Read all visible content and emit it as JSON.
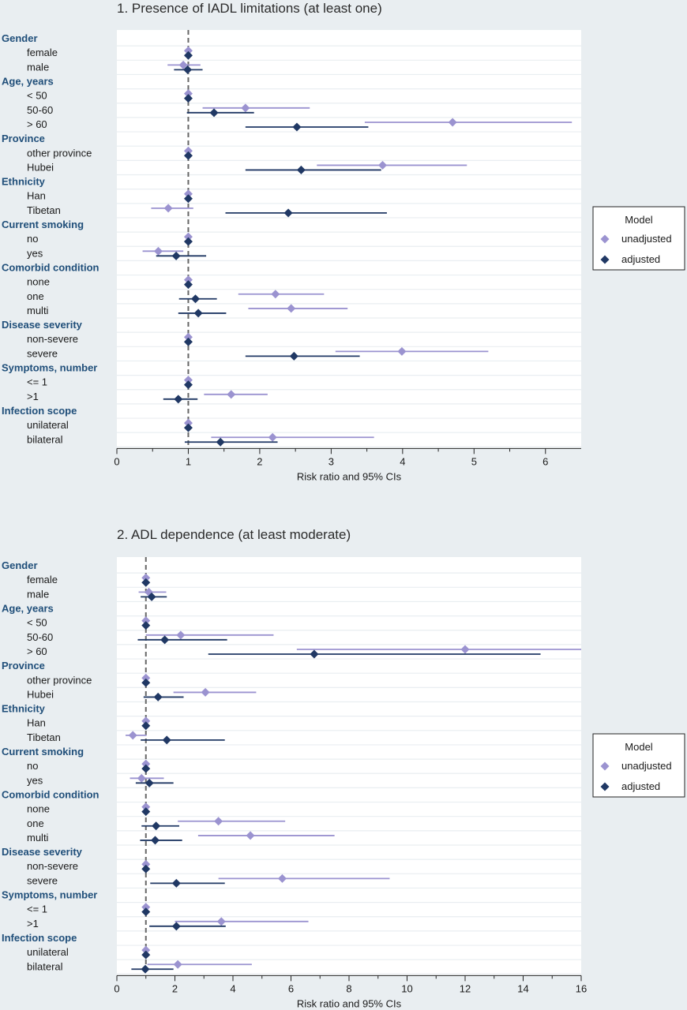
{
  "colors": {
    "background": "#e9eef1",
    "plot_background": "#ffffff",
    "row_band": "#e9eef1",
    "unadjusted": "#9b93d0",
    "adjusted": "#203864",
    "group_label": "#1f4e79",
    "reference_line": "#666666"
  },
  "chart_data": [
    {
      "type": "forest",
      "title": "1. Presence of IADL limitations (at least one)",
      "xlabel": "Risk ratio and 95% CIs",
      "xlim": [
        0,
        6.5
      ],
      "xticks": [
        0,
        1,
        2,
        3,
        4,
        5,
        6
      ],
      "reference_line": 1,
      "legend": {
        "title": "Model",
        "position": "right",
        "entries": [
          "unadjusted",
          "adjusted"
        ]
      },
      "rows": [
        {
          "label": "Gender",
          "group": true
        },
        {
          "label": "female",
          "unadjusted": [
            1,
            1,
            1
          ],
          "adjusted": [
            1,
            1,
            1
          ]
        },
        {
          "label": "male",
          "unadjusted": [
            0.93,
            0.71,
            1.17
          ],
          "adjusted": [
            0.99,
            0.8,
            1.2
          ]
        },
        {
          "label": "Age, years",
          "group": true
        },
        {
          "label": "< 50",
          "unadjusted": [
            1,
            1,
            1
          ],
          "adjusted": [
            1,
            1,
            1
          ]
        },
        {
          "label": "50-60",
          "unadjusted": [
            1.8,
            1.2,
            2.7
          ],
          "adjusted": [
            1.36,
            0.98,
            1.92
          ]
        },
        {
          "label": "> 60",
          "unadjusted": [
            4.7,
            3.47,
            6.37
          ],
          "adjusted": [
            2.52,
            1.8,
            3.52
          ]
        },
        {
          "label": "Province",
          "group": true
        },
        {
          "label": "other province",
          "unadjusted": [
            1,
            1,
            1
          ],
          "adjusted": [
            1,
            1,
            1
          ]
        },
        {
          "label": "Hubei",
          "unadjusted": [
            3.72,
            2.8,
            4.9
          ],
          "adjusted": [
            2.58,
            1.8,
            3.7
          ]
        },
        {
          "label": "Ethnicity",
          "group": true
        },
        {
          "label": "Han",
          "unadjusted": [
            1,
            1,
            1
          ],
          "adjusted": [
            1,
            1,
            1
          ]
        },
        {
          "label": "Tibetan",
          "unadjusted": [
            0.72,
            0.48,
            1.07
          ],
          "adjusted": [
            2.4,
            1.52,
            3.78
          ]
        },
        {
          "label": "Current smoking",
          "group": true
        },
        {
          "label": "no",
          "unadjusted": [
            1,
            1,
            1
          ],
          "adjusted": [
            1,
            1,
            1
          ]
        },
        {
          "label": "yes",
          "unadjusted": [
            0.58,
            0.36,
            0.93
          ],
          "adjusted": [
            0.83,
            0.55,
            1.25
          ]
        },
        {
          "label": "Comorbid condition",
          "group": true
        },
        {
          "label": "none",
          "unadjusted": [
            1,
            1,
            1
          ],
          "adjusted": [
            1,
            1,
            1
          ]
        },
        {
          "label": "one",
          "unadjusted": [
            2.22,
            1.7,
            2.9
          ],
          "adjusted": [
            1.1,
            0.87,
            1.4
          ]
        },
        {
          "label": "multi",
          "unadjusted": [
            2.44,
            1.84,
            3.23
          ],
          "adjusted": [
            1.14,
            0.86,
            1.53
          ]
        },
        {
          "label": "Disease severity",
          "group": true
        },
        {
          "label": "non-severe",
          "unadjusted": [
            1,
            1,
            1
          ],
          "adjusted": [
            1,
            1,
            1
          ]
        },
        {
          "label": "severe",
          "unadjusted": [
            3.99,
            3.06,
            5.2
          ],
          "adjusted": [
            2.48,
            1.8,
            3.4
          ]
        },
        {
          "label": "Symptoms, number",
          "group": true
        },
        {
          "label": "<= 1",
          "unadjusted": [
            1,
            1,
            1
          ],
          "adjusted": [
            1,
            1,
            1
          ]
        },
        {
          "label": ">1",
          "unadjusted": [
            1.6,
            1.22,
            2.11
          ],
          "adjusted": [
            0.86,
            0.65,
            1.13
          ]
        },
        {
          "label": "Infection scope",
          "group": true
        },
        {
          "label": "unilateral",
          "unadjusted": [
            1,
            1,
            1
          ],
          "adjusted": [
            1,
            1,
            1
          ]
        },
        {
          "label": "bilateral",
          "unadjusted": [
            2.18,
            1.32,
            3.6
          ],
          "adjusted": [
            1.45,
            0.95,
            2.25
          ]
        }
      ]
    },
    {
      "type": "forest",
      "title": "2. ADL dependence (at least moderate)",
      "xlabel": "Risk ratio and 95% CIs",
      "xlim": [
        0,
        16
      ],
      "xticks": [
        0,
        2,
        4,
        6,
        8,
        10,
        12,
        14,
        16
      ],
      "reference_line": 1,
      "legend": {
        "title": "Model",
        "position": "right",
        "entries": [
          "unadjusted",
          "adjusted"
        ]
      },
      "rows": [
        {
          "label": "Gender",
          "group": true
        },
        {
          "label": "female",
          "unadjusted": [
            1,
            1,
            1
          ],
          "adjusted": [
            1,
            1,
            1
          ]
        },
        {
          "label": "male",
          "unadjusted": [
            1.1,
            0.75,
            1.7
          ],
          "adjusted": [
            1.2,
            0.82,
            1.72
          ]
        },
        {
          "label": "Age, years",
          "group": true
        },
        {
          "label": "< 50",
          "unadjusted": [
            1,
            1,
            1
          ],
          "adjusted": [
            1,
            1,
            1
          ]
        },
        {
          "label": "50-60",
          "unadjusted": [
            2.2,
            1.0,
            5.4
          ],
          "adjusted": [
            1.65,
            0.72,
            3.8
          ]
        },
        {
          "label": "> 60",
          "unadjusted": [
            12.0,
            6.2,
            16.0
          ],
          "adjusted": [
            6.8,
            3.15,
            14.6
          ]
        },
        {
          "label": "Province",
          "group": true
        },
        {
          "label": "other province",
          "unadjusted": [
            1,
            1,
            1
          ],
          "adjusted": [
            1,
            1,
            1
          ]
        },
        {
          "label": "Hubei",
          "unadjusted": [
            3.05,
            1.95,
            4.8
          ],
          "adjusted": [
            1.42,
            0.92,
            2.3
          ]
        },
        {
          "label": "Ethnicity",
          "group": true
        },
        {
          "label": "Han",
          "unadjusted": [
            1,
            1,
            1
          ],
          "adjusted": [
            1,
            1,
            1
          ]
        },
        {
          "label": "Tibetan",
          "unadjusted": [
            0.55,
            0.3,
            1.02
          ],
          "adjusted": [
            1.72,
            0.82,
            3.72
          ]
        },
        {
          "label": "Current smoking",
          "group": true
        },
        {
          "label": "no",
          "unadjusted": [
            1,
            1,
            1
          ],
          "adjusted": [
            1,
            1,
            1
          ]
        },
        {
          "label": "yes",
          "unadjusted": [
            0.85,
            0.45,
            1.62
          ],
          "adjusted": [
            1.12,
            0.65,
            1.95
          ]
        },
        {
          "label": "Comorbid condition",
          "group": true
        },
        {
          "label": "none",
          "unadjusted": [
            1,
            1,
            1
          ],
          "adjusted": [
            1,
            1,
            1
          ]
        },
        {
          "label": "one",
          "unadjusted": [
            3.5,
            2.1,
            5.8
          ],
          "adjusted": [
            1.35,
            0.85,
            2.15
          ]
        },
        {
          "label": "multi",
          "unadjusted": [
            4.6,
            2.8,
            7.5
          ],
          "adjusted": [
            1.32,
            0.8,
            2.25
          ]
        },
        {
          "label": "Disease severity",
          "group": true
        },
        {
          "label": "non-severe",
          "unadjusted": [
            1,
            1,
            1
          ],
          "adjusted": [
            1,
            1,
            1
          ]
        },
        {
          "label": "severe",
          "unadjusted": [
            5.7,
            3.5,
            9.4
          ],
          "adjusted": [
            2.05,
            1.15,
            3.72
          ]
        },
        {
          "label": "Symptoms, number",
          "group": true
        },
        {
          "label": "<= 1",
          "unadjusted": [
            1,
            1,
            1
          ],
          "adjusted": [
            1,
            1,
            1
          ]
        },
        {
          "label": ">1",
          "unadjusted": [
            3.6,
            2.0,
            6.6
          ],
          "adjusted": [
            2.05,
            1.12,
            3.75
          ]
        },
        {
          "label": "Infection scope",
          "group": true
        },
        {
          "label": "unilateral",
          "unadjusted": [
            1,
            1,
            1
          ],
          "adjusted": [
            1,
            1,
            1
          ]
        },
        {
          "label": "bilateral",
          "unadjusted": [
            2.1,
            1.05,
            4.65
          ],
          "adjusted": [
            0.98,
            0.5,
            1.95
          ]
        }
      ]
    }
  ]
}
